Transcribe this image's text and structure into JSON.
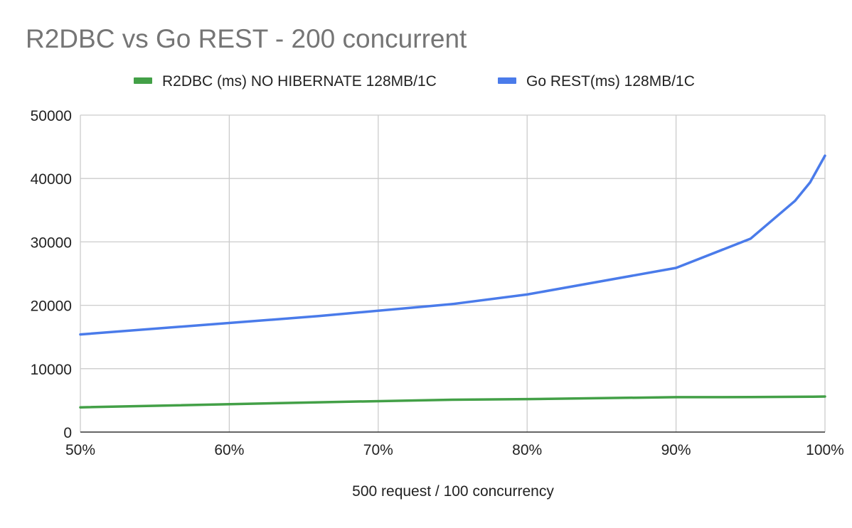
{
  "chart_data": {
    "type": "line",
    "title": "R2DBC vs Go REST - 200 concurrent",
    "xlabel": "500 request / 100 concurrency",
    "ylabel": "",
    "x_unit": "percentile (%)",
    "xlim": [
      50,
      100
    ],
    "ylim": [
      0,
      50000
    ],
    "x_ticks": [
      50,
      60,
      70,
      80,
      90,
      100
    ],
    "x_tick_labels": [
      "50%",
      "60%",
      "70%",
      "80%",
      "90%",
      "100%"
    ],
    "y_ticks": [
      0,
      10000,
      20000,
      30000,
      40000,
      50000
    ],
    "y_tick_labels": [
      "0",
      "10000",
      "20000",
      "30000",
      "40000",
      "50000"
    ],
    "grid": true,
    "legend_position": "top-center",
    "series": [
      {
        "name": "R2DBC (ms) NO HIBERNATE 128MB/1C",
        "color": "#43a047",
        "x": [
          50,
          66,
          75,
          80,
          90,
          95,
          98,
          99,
          100
        ],
        "y": [
          3900,
          4700,
          5100,
          5200,
          5500,
          5520,
          5560,
          5570,
          5600
        ]
      },
      {
        "name": "Go REST(ms) 128MB/1C",
        "color": "#4a7bea",
        "x": [
          50,
          66,
          75,
          80,
          90,
          95,
          98,
          99,
          100
        ],
        "y": [
          15400,
          18300,
          20200,
          21700,
          25900,
          30500,
          36500,
          39400,
          43600
        ]
      }
    ]
  }
}
